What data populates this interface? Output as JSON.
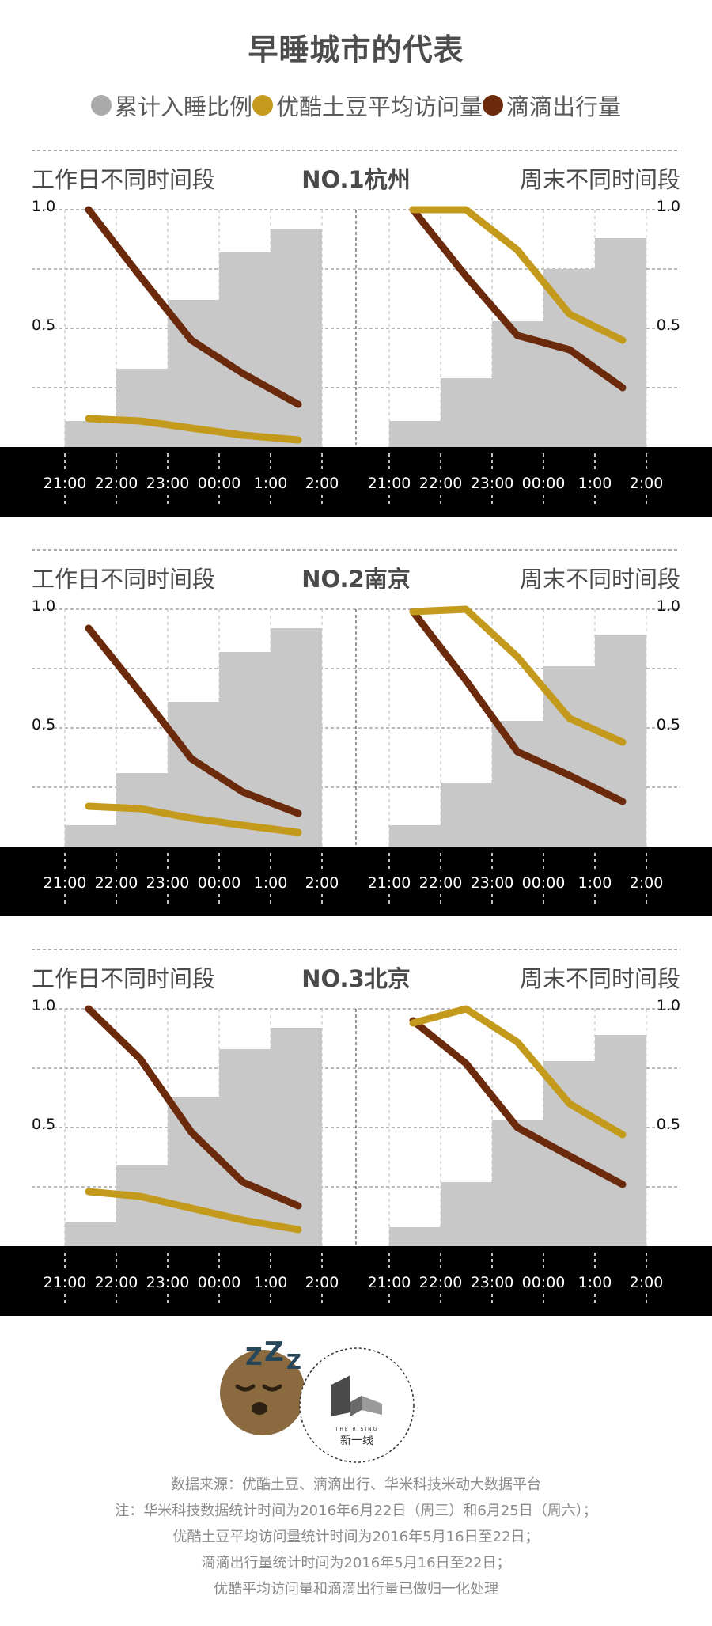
{
  "title": "早睡城市的代表",
  "legend": [
    {
      "label": "累计入睡比例",
      "color": "#aaaaaa"
    },
    {
      "label": "优酷土豆平均访问量",
      "color": "#c49a1c"
    },
    {
      "label": "滴滴出行量",
      "color": "#6b2a0c"
    }
  ],
  "colors": {
    "bars": "#c8c8c8",
    "youku": "#c49a1c",
    "didi": "#6b2a0c",
    "axis_band": "#000000"
  },
  "chart_data": [
    {
      "type": "bar+line",
      "city": "NO.1杭州",
      "left_label": "工作日不同时间段",
      "right_label": "周末不同时间段",
      "x_ticks": [
        "21:00",
        "22:00",
        "23:00",
        "00:00",
        "1:00",
        "2:00"
      ],
      "y_ticks": [
        "1.0",
        "0.5"
      ],
      "ylim": [
        0,
        1
      ],
      "weekday": {
        "bars": [
          0.11,
          0.33,
          0.62,
          0.82,
          0.92
        ],
        "youku": [
          0.12,
          0.11,
          0.08,
          0.05,
          0.03
        ],
        "didi": [
          1.0,
          0.72,
          0.45,
          0.31,
          0.18
        ]
      },
      "weekend": {
        "bars": [
          0.11,
          0.29,
          0.53,
          0.75,
          0.88
        ],
        "youku": [
          1.0,
          1.0,
          0.83,
          0.56,
          0.45
        ],
        "didi": [
          1.0,
          0.72,
          0.47,
          0.41,
          0.25
        ]
      }
    },
    {
      "type": "bar+line",
      "city": "NO.2南京",
      "left_label": "工作日不同时间段",
      "right_label": "周末不同时间段",
      "x_ticks": [
        "21:00",
        "22:00",
        "23:00",
        "00:00",
        "1:00",
        "2:00"
      ],
      "y_ticks": [
        "1.0",
        "0.5"
      ],
      "ylim": [
        0,
        1
      ],
      "weekday": {
        "bars": [
          0.09,
          0.31,
          0.61,
          0.82,
          0.92
        ],
        "youku": [
          0.17,
          0.16,
          0.12,
          0.09,
          0.06
        ],
        "didi": [
          0.92,
          0.65,
          0.37,
          0.23,
          0.14
        ]
      },
      "weekend": {
        "bars": [
          0.09,
          0.27,
          0.53,
          0.76,
          0.89
        ],
        "youku": [
          0.99,
          1.0,
          0.8,
          0.54,
          0.44
        ],
        "didi": [
          0.99,
          0.7,
          0.4,
          0.3,
          0.19
        ]
      }
    },
    {
      "type": "bar+line",
      "city": "NO.3北京",
      "left_label": "工作日不同时间段",
      "right_label": "周末不同时间段",
      "x_ticks": [
        "21:00",
        "22:00",
        "23:00",
        "00:00",
        "1:00",
        "2:00"
      ],
      "y_ticks": [
        "1.0",
        "0.5"
      ],
      "ylim": [
        0,
        1
      ],
      "weekday": {
        "bars": [
          0.1,
          0.34,
          0.63,
          0.83,
          0.92
        ],
        "youku": [
          0.23,
          0.21,
          0.16,
          0.11,
          0.07
        ],
        "didi": [
          1.0,
          0.79,
          0.48,
          0.27,
          0.17
        ]
      },
      "weekend": {
        "bars": [
          0.08,
          0.27,
          0.53,
          0.78,
          0.89
        ],
        "youku": [
          0.94,
          1.0,
          0.86,
          0.6,
          0.47
        ],
        "didi": [
          0.95,
          0.77,
          0.5,
          0.38,
          0.26
        ]
      }
    }
  ],
  "logo": {
    "brand": "新一线",
    "tagline": "THE RISING"
  },
  "footer": [
    "数据来源：优酷土豆、滴滴出行、华米科技米动大数据平台",
    "注：华米科技数据统计时间为2016年6月22日（周三）和6月25日（周六）；",
    "优酷土豆平均访问量统计时间为2016年5月16日至22日；",
    "滴滴出行量统计时间为2016年5月16日至22日；",
    "优酷平均访问量和滴滴出行量已做归一化处理"
  ]
}
